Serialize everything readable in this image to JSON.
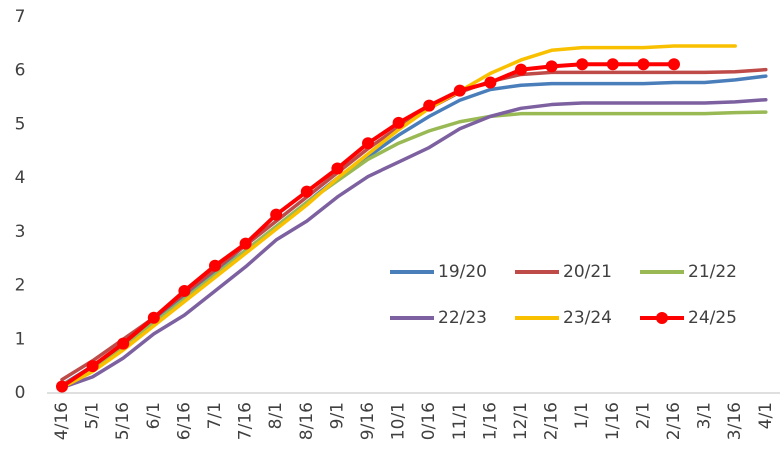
{
  "chart_data": {
    "type": "line",
    "categories": [
      "4/16",
      "5/1",
      "5/16",
      "6/1",
      "6/16",
      "7/1",
      "7/16",
      "8/1",
      "8/16",
      "9/1",
      "9/16",
      "10/1",
      "0/16",
      "11/1",
      "1/16",
      "12/1",
      "2/16",
      "1/1",
      "1/16",
      "2/1",
      "2/16",
      "3/1",
      "3/16",
      "4/1"
    ],
    "ylim": [
      0,
      7
    ],
    "yticks": [
      0,
      1,
      2,
      3,
      4,
      5,
      6,
      7
    ],
    "grid": false,
    "series": [
      {
        "name": "19/20",
        "color": "#4a7ebb",
        "values": [
          0.15,
          0.5,
          0.9,
          1.35,
          1.8,
          2.25,
          2.65,
          3.1,
          3.55,
          4.0,
          4.4,
          4.8,
          5.15,
          5.45,
          5.65,
          5.73,
          5.76,
          5.76,
          5.76,
          5.76,
          5.78,
          5.78,
          5.83,
          5.9
        ]
      },
      {
        "name": "20/21",
        "color": "#be4b48",
        "values": [
          0.25,
          0.6,
          1.0,
          1.4,
          1.85,
          2.3,
          2.75,
          3.2,
          3.65,
          4.1,
          4.55,
          4.95,
          5.3,
          5.6,
          5.8,
          5.93,
          5.97,
          5.97,
          5.97,
          5.97,
          5.97,
          5.97,
          5.98,
          6.02
        ]
      },
      {
        "name": "21/22",
        "color": "#98b954",
        "values": [
          0.15,
          0.45,
          0.85,
          1.3,
          1.75,
          2.2,
          2.65,
          3.1,
          3.55,
          3.95,
          4.35,
          4.65,
          4.88,
          5.05,
          5.15,
          5.2,
          5.2,
          5.2,
          5.2,
          5.2,
          5.2,
          5.2,
          5.22,
          5.23
        ]
      },
      {
        "name": "22/23",
        "color": "#7d60a0",
        "values": [
          0.1,
          0.3,
          0.65,
          1.1,
          1.45,
          1.9,
          2.35,
          2.85,
          3.2,
          3.65,
          4.03,
          4.3,
          4.57,
          4.92,
          5.15,
          5.3,
          5.37,
          5.4,
          5.4,
          5.4,
          5.4,
          5.4,
          5.42,
          5.46
        ]
      },
      {
        "name": "23/24",
        "color": "#f9c000",
        "values": [
          0.1,
          0.4,
          0.8,
          1.25,
          1.7,
          2.15,
          2.6,
          3.05,
          3.5,
          4.0,
          4.45,
          4.9,
          5.3,
          5.62,
          5.95,
          6.2,
          6.38,
          6.43,
          6.43,
          6.43,
          6.46,
          6.46,
          6.46,
          null
        ]
      },
      {
        "name": "24/25",
        "color": "#ff0000",
        "markers": true,
        "values": [
          0.12,
          0.5,
          0.92,
          1.4,
          1.9,
          2.37,
          2.78,
          3.32,
          3.75,
          4.18,
          4.65,
          5.03,
          5.35,
          5.63,
          5.78,
          6.02,
          6.08,
          6.12,
          6.12,
          6.12,
          6.12,
          null,
          null,
          null
        ]
      }
    ]
  }
}
